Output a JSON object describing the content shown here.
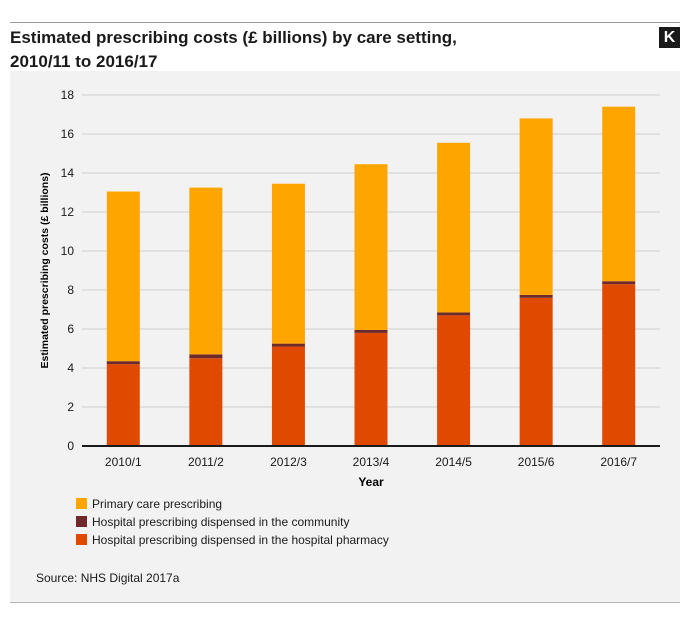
{
  "header": {
    "title": "Estimated prescribing costs (£ billions) by care setting,",
    "title_line2": "2010/11 to 2016/17",
    "logo_text": "K"
  },
  "chart_data": {
    "type": "bar",
    "stacked": true,
    "categories": [
      "2010/1",
      "2011/2",
      "2012/3",
      "2013/4",
      "2014/5",
      "2015/6",
      "2016/7"
    ],
    "series": [
      {
        "name": "Hospital prescribing dispensed in the hospital pharmacy",
        "color": "#e04a00",
        "values": [
          4.2,
          4.5,
          5.1,
          5.8,
          6.7,
          7.6,
          8.3
        ]
      },
      {
        "name": "Hospital prescribing dispensed in the community",
        "color": "#6e2a2a",
        "values": [
          0.15,
          0.2,
          0.15,
          0.15,
          0.15,
          0.15,
          0.15
        ]
      },
      {
        "name": "Primary care prescribing",
        "color": "#ffa500",
        "values": [
          8.7,
          8.55,
          8.2,
          8.5,
          8.7,
          9.05,
          8.95
        ]
      }
    ],
    "xlabel": "Year",
    "ylabel": "Estimated prescribing costs (£ billions)",
    "ylim": [
      0,
      18
    ],
    "yticks": [
      0,
      2,
      4,
      6,
      8,
      10,
      12,
      14,
      16,
      18
    ],
    "grid": true,
    "legend_position": "bottom-left"
  },
  "legend": {
    "items": [
      {
        "label": "Primary care prescribing",
        "color": "#ffa500"
      },
      {
        "label": "Hospital prescribing dispensed in the community",
        "color": "#6e2a2a"
      },
      {
        "label": "Hospital prescribing dispensed in the hospital pharmacy",
        "color": "#e04a00"
      }
    ]
  },
  "footer": {
    "source": "Source: NHS Digital 2017a"
  }
}
